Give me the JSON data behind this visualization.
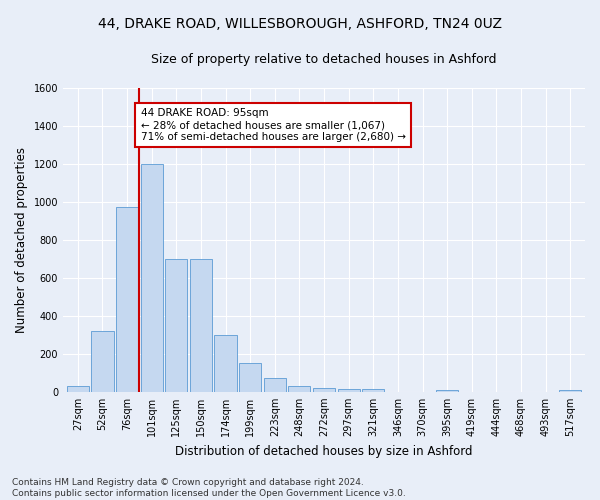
{
  "title": "44, DRAKE ROAD, WILLESBOROUGH, ASHFORD, TN24 0UZ",
  "subtitle": "Size of property relative to detached houses in Ashford",
  "xlabel": "Distribution of detached houses by size in Ashford",
  "ylabel": "Number of detached properties",
  "categories": [
    "27sqm",
    "52sqm",
    "76sqm",
    "101sqm",
    "125sqm",
    "150sqm",
    "174sqm",
    "199sqm",
    "223sqm",
    "248sqm",
    "272sqm",
    "297sqm",
    "321sqm",
    "346sqm",
    "370sqm",
    "395sqm",
    "419sqm",
    "444sqm",
    "468sqm",
    "493sqm",
    "517sqm"
  ],
  "values": [
    30,
    320,
    970,
    1200,
    700,
    700,
    300,
    150,
    70,
    30,
    20,
    15,
    15,
    0,
    0,
    10,
    0,
    0,
    0,
    0,
    10
  ],
  "bar_color": "#c5d8f0",
  "bar_edge_color": "#5b9bd5",
  "red_line_x": 2.5,
  "annotation_title": "44 DRAKE ROAD: 95sqm",
  "annotation_line1": "← 28% of detached houses are smaller (1,067)",
  "annotation_line2": "71% of semi-detached houses are larger (2,680) →",
  "annotation_box_color": "#ffffff",
  "annotation_box_edge": "#cc0000",
  "red_line_color": "#cc0000",
  "ylim": [
    0,
    1600
  ],
  "yticks": [
    0,
    200,
    400,
    600,
    800,
    1000,
    1200,
    1400,
    1600
  ],
  "footer1": "Contains HM Land Registry data © Crown copyright and database right 2024.",
  "footer2": "Contains public sector information licensed under the Open Government Licence v3.0.",
  "bg_color": "#e8eef8",
  "grid_color": "#ffffff",
  "title_fontsize": 10,
  "subtitle_fontsize": 9,
  "axis_label_fontsize": 8.5,
  "tick_fontsize": 7,
  "footer_fontsize": 6.5,
  "ann_fontsize": 7.5
}
